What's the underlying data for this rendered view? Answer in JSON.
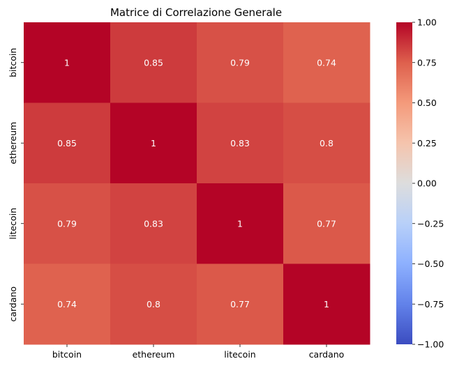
{
  "chart_data": {
    "type": "heatmap",
    "title": "Matrice di Correlazione Generale",
    "xlabel": "",
    "ylabel": "",
    "x_categories": [
      "bitcoin",
      "ethereum",
      "litecoin",
      "cardano"
    ],
    "y_categories": [
      "bitcoin",
      "ethereum",
      "litecoin",
      "cardano"
    ],
    "values": [
      [
        1,
        0.85,
        0.79,
        0.74
      ],
      [
        0.85,
        1,
        0.83,
        0.8
      ],
      [
        0.79,
        0.83,
        1,
        0.77
      ],
      [
        0.74,
        0.8,
        0.77,
        1
      ]
    ],
    "cell_labels": [
      [
        "1",
        "0.85",
        "0.79",
        "0.74"
      ],
      [
        "0.85",
        "1",
        "0.83",
        "0.8"
      ],
      [
        "0.79",
        "0.83",
        "1",
        "0.77"
      ],
      [
        "0.74",
        "0.8",
        "0.77",
        "1"
      ]
    ],
    "colorbar": {
      "range": [
        -1.0,
        1.0
      ],
      "ticks": [
        1.0,
        0.75,
        0.5,
        0.25,
        0.0,
        -0.25,
        -0.5,
        -0.75,
        -1.0
      ],
      "tick_labels": [
        "1.00",
        "0.75",
        "0.50",
        "0.25",
        "0.00",
        "−0.25",
        "−0.50",
        "−0.75",
        "−1.00"
      ],
      "colormap": "coolwarm"
    },
    "grid": false
  }
}
